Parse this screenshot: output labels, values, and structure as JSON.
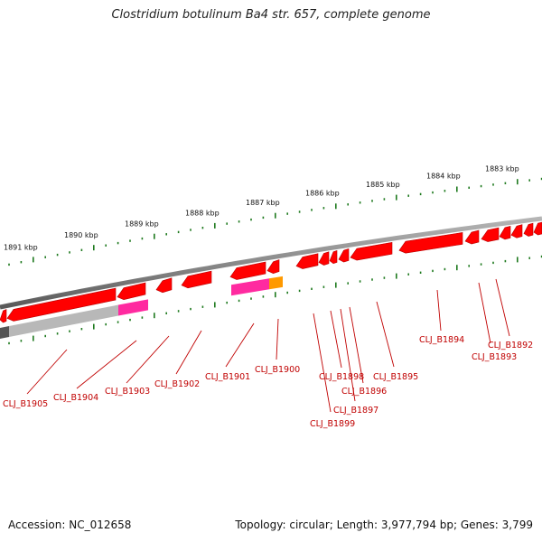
{
  "title": "Clostridium botulinum Ba4 str. 657, complete genome",
  "accession": "Accession: NC_012658",
  "summary": "Topology: circular; Length: 3,977,794 bp; Genes: 3,799",
  "colors": {
    "backbone": "#8a8a8a",
    "gene": "#ff0000",
    "gene_dark": "#b80000",
    "rrna": "#ff2aa0",
    "orange": "#ff9900",
    "gray_feature": "#b8b8b8",
    "tick": "#1f7a1f",
    "label": "#c00000"
  },
  "scale_labels": [
    "1891 kbp",
    "1890 kbp",
    "1889 kbp",
    "1888 kbp",
    "1887 kbp",
    "1886 kbp",
    "1885 kbp",
    "1884 kbp",
    "1883 kbp"
  ],
  "gene_labels": [
    "CLJ_B1905",
    "CLJ_B1904",
    "CLJ_B1903",
    "CLJ_B1902",
    "CLJ_B1901",
    "CLJ_B1900",
    "CLJ_B1899",
    "CLJ_B1898",
    "CLJ_B1897",
    "CLJ_B1896",
    "CLJ_B1895",
    "CLJ_B1894",
    "CLJ_B1893",
    "CLJ_B1892"
  ]
}
